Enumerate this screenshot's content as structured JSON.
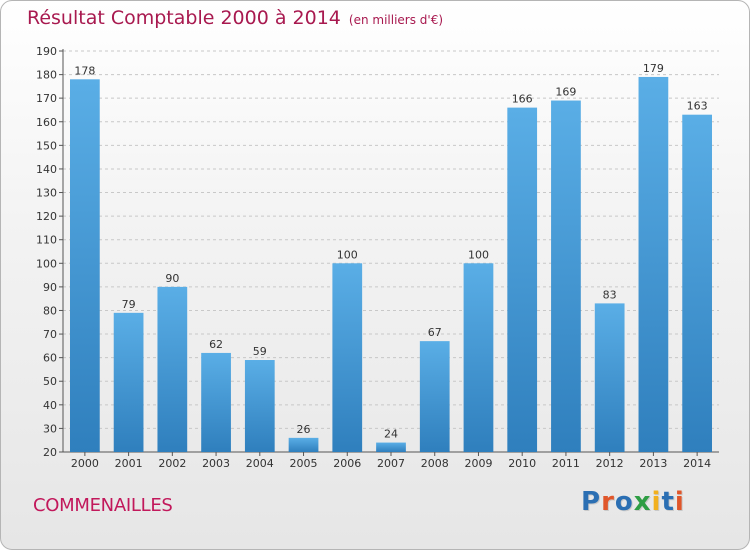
{
  "title": "Résultat Comptable 2000 à 2014",
  "subtitle": "(en milliers d'€)",
  "commune": "COMMENAILLES",
  "logo": {
    "text": "Proxiti",
    "colors": [
      "#2b6fb3",
      "#e0562a",
      "#2b6fb3",
      "#2e9e44",
      "#f2b01e",
      "#2b6fb3",
      "#e0562a"
    ]
  },
  "colors": {
    "title": "#a8194f",
    "bar_top": "#5aaee6",
    "bar_bottom": "#2f7fbd",
    "grid": "#c8c8c8"
  },
  "chart_data": {
    "type": "bar",
    "categories": [
      "2000",
      "2001",
      "2002",
      "2003",
      "2004",
      "2005",
      "2006",
      "2007",
      "2008",
      "2009",
      "2010",
      "2011",
      "2012",
      "2013",
      "2014"
    ],
    "values": [
      178,
      79,
      90,
      62,
      59,
      26,
      100,
      24,
      67,
      100,
      166,
      169,
      83,
      179,
      163
    ],
    "data_labels": [
      "178",
      "79",
      "90",
      "62",
      "59",
      "26",
      "100",
      "24",
      "67",
      "100",
      "166",
      "169",
      "83",
      "179",
      "163"
    ],
    "ylim": [
      20,
      190
    ],
    "yticks": [
      20,
      30,
      40,
      50,
      60,
      70,
      80,
      90,
      100,
      110,
      120,
      130,
      140,
      150,
      160,
      170,
      180,
      190
    ],
    "grid": true,
    "xlabel": "",
    "ylabel": ""
  }
}
